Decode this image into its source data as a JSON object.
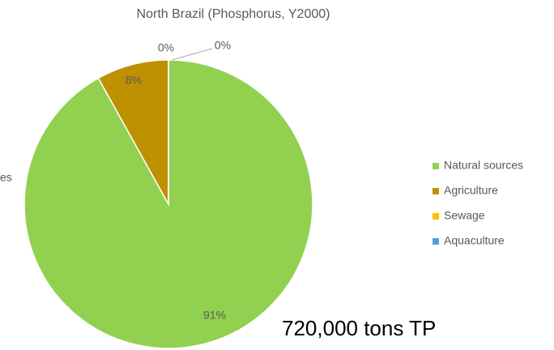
{
  "chart_data": {
    "type": "pie",
    "title": "North Brazil (Phosphorus, Y2000)",
    "categories": [
      "Natural sources",
      "Agriculture",
      "Sewage",
      "Aquaculture"
    ],
    "values": [
      91,
      8,
      0,
      0
    ],
    "value_labels": [
      "91%",
      "8%",
      "0%",
      "0%"
    ],
    "colors": [
      "#92d050",
      "#bf9000",
      "#ffc000",
      "#5b9bd5"
    ],
    "legend": "right",
    "annotations": [
      "720,000 tons TP",
      "es"
    ]
  }
}
